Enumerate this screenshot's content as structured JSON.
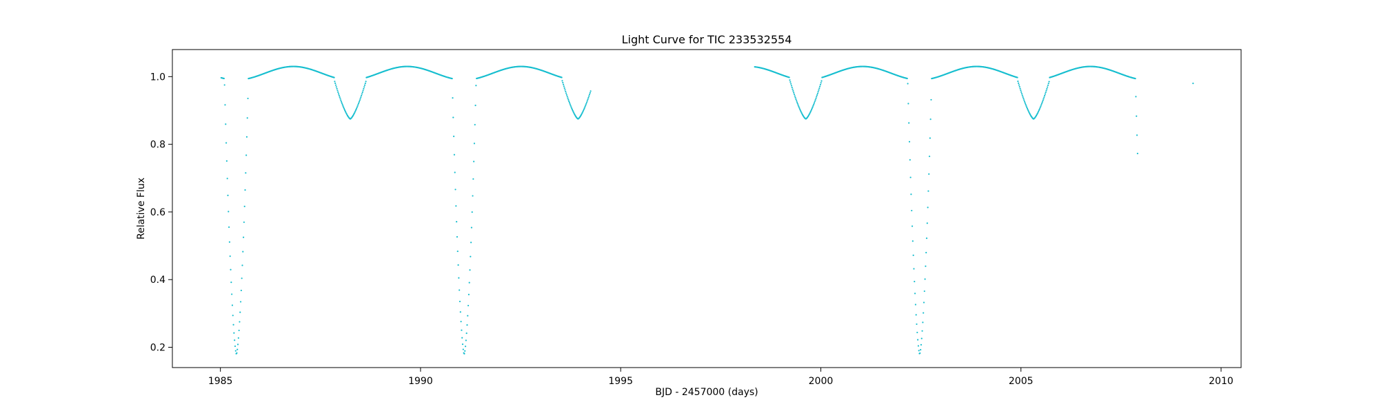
{
  "chart_data": {
    "type": "scatter",
    "title": "Light Curve for TIC 233532554",
    "xlabel": "BJD - 2457000 (days)",
    "ylabel": "Relative Flux",
    "xlim": [
      1983.8,
      2010.5
    ],
    "ylim": [
      0.14,
      1.08
    ],
    "xticks": [
      1985,
      1990,
      1995,
      2000,
      2005,
      2010
    ],
    "yticks": [
      0.2,
      0.4,
      0.6,
      0.8,
      1.0
    ],
    "xtick_labels": [
      "1985",
      "1990",
      "1995",
      "2000",
      "2005",
      "2010"
    ],
    "ytick_labels": [
      "0.2",
      "0.4",
      "0.6",
      "0.8",
      "1.0"
    ],
    "grid": false,
    "legend": false,
    "marker_color": "#17becf",
    "model": {
      "period_days": 5.69,
      "primary_eclipse_epoch": 1985.4,
      "secondary_eclipse_phase": 0.5,
      "primary_depth_min_flux": 0.18,
      "secondary_depth_min_flux": 0.875,
      "primary_half_width_days": 0.3,
      "secondary_half_width_days": 0.4,
      "out_of_eclipse_flux": 0.99,
      "max_flux": 1.03
    },
    "segments": [
      {
        "start": 1985.02,
        "end": 1994.25
      },
      {
        "start": 1998.35,
        "end": 2007.92
      }
    ],
    "isolated_points": [
      {
        "x": 2009.3,
        "y": 0.98
      }
    ]
  }
}
